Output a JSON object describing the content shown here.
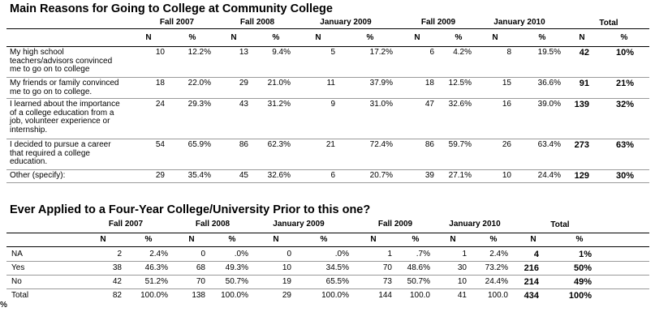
{
  "table1": {
    "title": "Main Reasons for Going to College at Community College",
    "periods": [
      "Fall 2007",
      "Fall 2008",
      "January 2009",
      "Fall 2009",
      "January 2010",
      "Total"
    ],
    "n_label": "N",
    "pct_label": "%",
    "rows": [
      {
        "label": [
          "My high school",
          "teachers/advisors convinced",
          "me to go on to college"
        ],
        "vals": [
          "10",
          "12.2%",
          "13",
          "9.4%",
          "5",
          "17.2%",
          "6",
          "4.2%",
          "8",
          "19.5%",
          "42",
          "10%"
        ]
      },
      {
        "label": [
          "My friends or family convinced",
          "me to go on to college."
        ],
        "vals": [
          "18",
          "22.0%",
          "29",
          "21.0%",
          "11",
          "37.9%",
          "18",
          "12.5%",
          "15",
          "36.6%",
          "91",
          "21%"
        ]
      },
      {
        "label": [
          "I learned about the importance",
          "of a college education from a",
          "job, volunteer experience or",
          "internship."
        ],
        "vals": [
          "24",
          "29.3%",
          "43",
          "31.2%",
          "9",
          "31.0%",
          "47",
          "32.6%",
          "16",
          "39.0%",
          "139",
          "32%"
        ]
      },
      {
        "label": [
          "I decided to pursue a career",
          "that required a college",
          "education."
        ],
        "vals": [
          "54",
          "65.9%",
          "86",
          "62.3%",
          "21",
          "72.4%",
          "86",
          "59.7%",
          "26",
          "63.4%",
          "273",
          "63%"
        ]
      },
      {
        "label": [
          "Other (specify):"
        ],
        "vals": [
          "29",
          "35.4%",
          "45",
          "32.6%",
          "6",
          "20.7%",
          "39",
          "27.1%",
          "10",
          "24.4%",
          "129",
          "30%"
        ]
      }
    ]
  },
  "table2": {
    "title": "Ever Applied to a Four-Year College/University Prior to this one?",
    "periods": [
      "Fall 2007",
      "Fall 2008",
      "January 2009",
      "Fall 2009",
      "January 2010",
      "Total"
    ],
    "n_label": "N",
    "pct_label": "%",
    "rows": [
      {
        "label": "NA",
        "vals": [
          "2",
          "2.4%",
          "0",
          ".0%",
          "0",
          ".0%",
          "1",
          ".7%",
          "1",
          "2.4%",
          "4",
          "1%"
        ]
      },
      {
        "label": "Yes",
        "vals": [
          "38",
          "46.3%",
          "68",
          "49.3%",
          "10",
          "34.5%",
          "70",
          "48.6%",
          "30",
          "73.2%",
          "216",
          "50%"
        ]
      },
      {
        "label": "No",
        "vals": [
          "42",
          "51.2%",
          "70",
          "50.7%",
          "19",
          "65.5%",
          "73",
          "50.7%",
          "10",
          "24.4%",
          "214",
          "49%"
        ]
      },
      {
        "label": "Total",
        "vals": [
          "82",
          "100.0%",
          "138",
          "100.0%",
          "29",
          "100.0%",
          "144",
          "100.0",
          "41",
          "100.0",
          "434",
          "100%"
        ],
        "wrap": {
          "13": "%",
          "15": "%"
        }
      }
    ]
  }
}
